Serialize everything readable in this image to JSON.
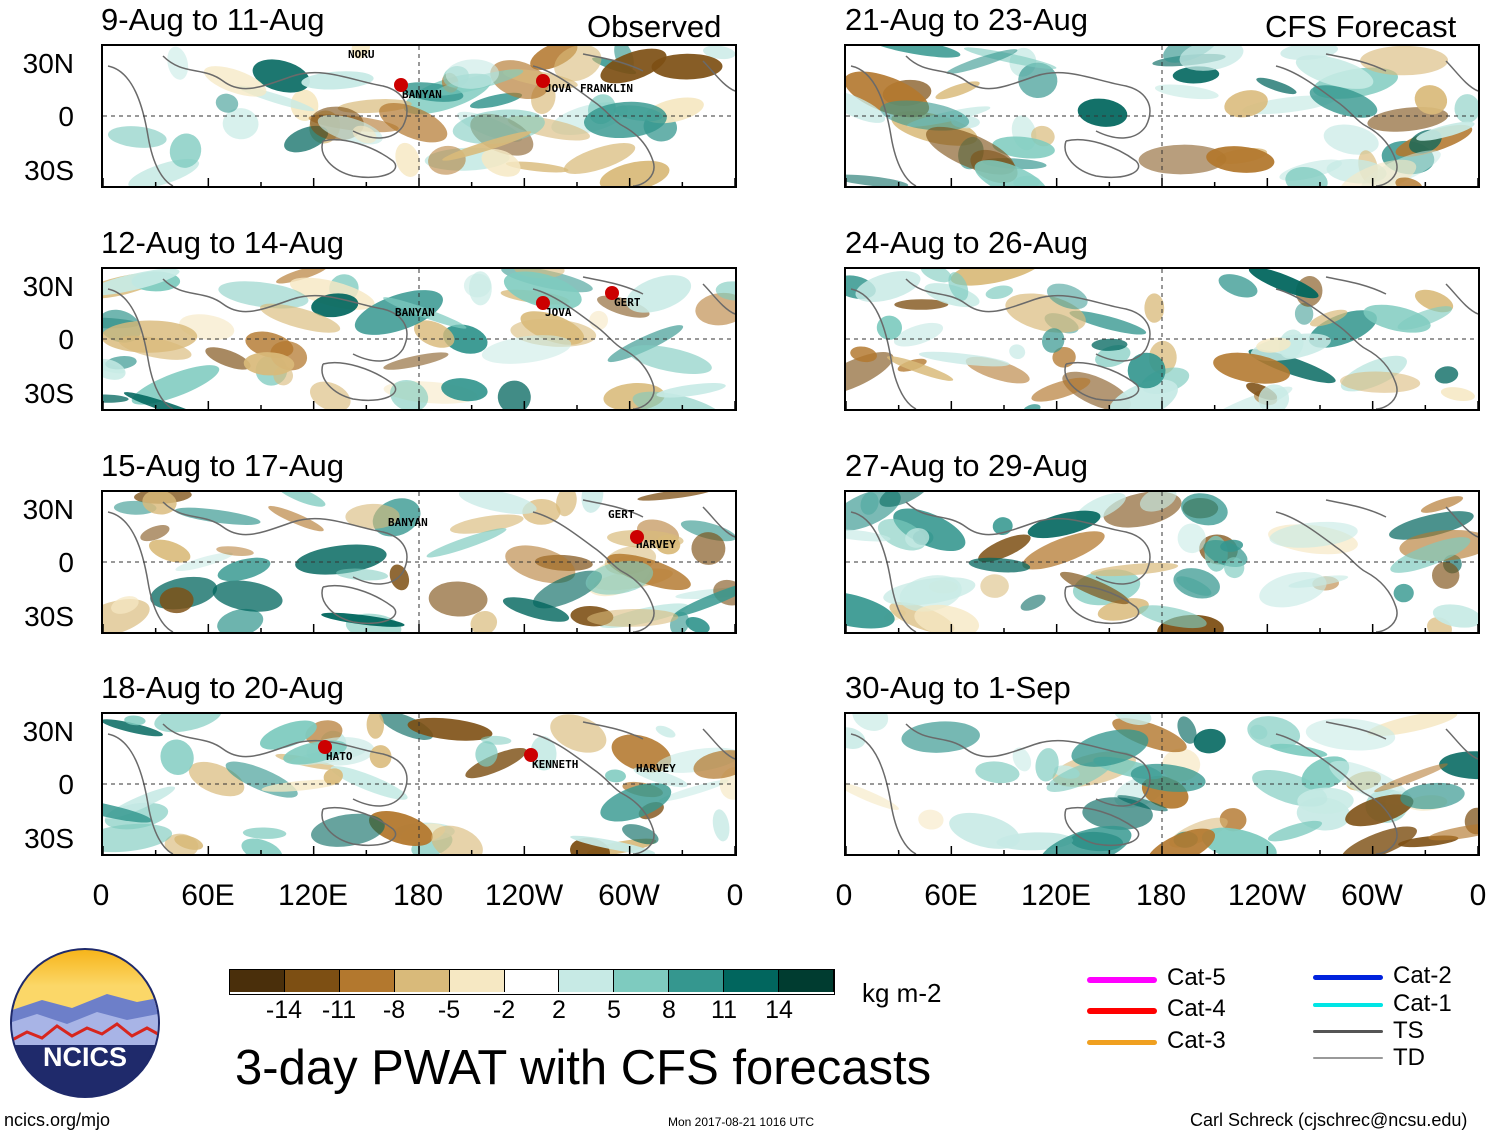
{
  "observed_label": "Observed",
  "forecast_label": "CFS Forecast",
  "observed_panels": [
    {
      "title": "9-Aug to 11-Aug",
      "storms": [
        "NORU",
        "BANYAN",
        "JOVA",
        "FRANKLIN"
      ]
    },
    {
      "title": "12-Aug to 14-Aug",
      "storms": [
        "BANYAN",
        "JOVA",
        "GERT"
      ]
    },
    {
      "title": "15-Aug to 17-Aug",
      "storms": [
        "BANYAN",
        "GERT",
        "HARVEY"
      ]
    },
    {
      "title": "18-Aug to 20-Aug",
      "storms": [
        "HATO",
        "KENNETH",
        "HARVEY"
      ]
    }
  ],
  "forecast_panels": [
    {
      "title": "21-Aug to 23-Aug"
    },
    {
      "title": "24-Aug to 26-Aug"
    },
    {
      "title": "27-Aug to 29-Aug"
    },
    {
      "title": "30-Aug to 1-Sep"
    }
  ],
  "lat_labels": [
    "30N",
    "0",
    "30S"
  ],
  "lon_labels": [
    "0",
    "60E",
    "120E",
    "180",
    "120W",
    "60W",
    "0"
  ],
  "colorbar": {
    "unit": "kg m-2",
    "ticks": [
      "-14",
      "-11",
      "-8",
      "-5",
      "-2",
      "2",
      "5",
      "8",
      "11",
      "14"
    ],
    "colors": [
      "#4a2f0b",
      "#7d4f13",
      "#b3782e",
      "#d9ba7a",
      "#f6e8c3",
      "#ffffff",
      "#c7eae5",
      "#7ecbbf",
      "#35978f",
      "#01665e",
      "#003c30"
    ]
  },
  "legend": [
    {
      "label": "Cat-5",
      "color": "#ff00ff"
    },
    {
      "label": "Cat-4",
      "color": "#ff0000"
    },
    {
      "label": "Cat-3",
      "color": "#f0a020"
    },
    {
      "label": "Cat-2",
      "color": "#0022dd"
    },
    {
      "label": "Cat-1",
      "color": "#00e5e5"
    },
    {
      "label": "TS",
      "color": "#555555"
    },
    {
      "label": "TD",
      "color": "#999999"
    }
  ],
  "main_title": "3-day PWAT with CFS forecasts",
  "logo_text": "NCICS",
  "footer": {
    "url": "ncics.org/mjo",
    "timestamp": "Mon 2017-08-21 1016 UTC",
    "author": "Carl Schreck (cjschrec@ncsu.edu)"
  },
  "chart_data": {
    "type": "heatmap",
    "title": "3-day PWAT with CFS forecasts",
    "variable": "precipitable water anomaly",
    "unit": "kg m-2",
    "levels": [
      -14,
      -11,
      -8,
      -5,
      -2,
      2,
      5,
      8,
      11,
      14
    ],
    "x_ticks": [
      "0",
      "60E",
      "120E",
      "180",
      "120W",
      "60W",
      "0"
    ],
    "y_ticks": [
      "30N",
      "0",
      "30S"
    ],
    "xlim": [
      0,
      360
    ],
    "ylim": [
      -40,
      40
    ],
    "panels": [
      {
        "period": "9-Aug to 11-Aug",
        "source": "Observed"
      },
      {
        "period": "12-Aug to 14-Aug",
        "source": "Observed"
      },
      {
        "period": "15-Aug to 17-Aug",
        "source": "Observed"
      },
      {
        "period": "18-Aug to 20-Aug",
        "source": "Observed"
      },
      {
        "period": "21-Aug to 23-Aug",
        "source": "CFS Forecast"
      },
      {
        "period": "24-Aug to 26-Aug",
        "source": "CFS Forecast"
      },
      {
        "period": "27-Aug to 29-Aug",
        "source": "CFS Forecast"
      },
      {
        "period": "30-Aug to 1-Sep",
        "source": "CFS Forecast"
      }
    ]
  }
}
